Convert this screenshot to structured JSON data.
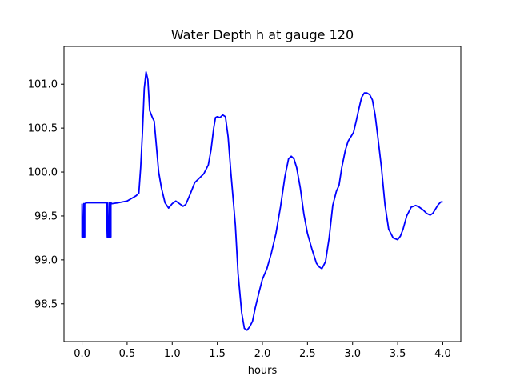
{
  "chart_data": {
    "type": "line",
    "title": "Water Depth h at gauge 120",
    "xlabel": "hours",
    "ylabel": "",
    "xlim": [
      -0.2,
      4.2
    ],
    "ylim": [
      98.07,
      101.43
    ],
    "x_ticks": [
      "0.0",
      "0.5",
      "1.0",
      "1.5",
      "2.0",
      "2.5",
      "3.0",
      "3.5",
      "4.0"
    ],
    "y_ticks": [
      "98.5",
      "99.0",
      "99.5",
      "100.0",
      "100.5",
      "101.0"
    ],
    "grid": false,
    "legend": "none",
    "series": [
      {
        "color": "#0000ff",
        "x": [
          0.0,
          0.0,
          0.01,
          0.02,
          0.02,
          0.03,
          0.03,
          0.05,
          0.1,
          0.2,
          0.27,
          0.28,
          0.28,
          0.29,
          0.3,
          0.3,
          0.31,
          0.32,
          0.32,
          0.33,
          0.4,
          0.5,
          0.55,
          0.6,
          0.63,
          0.65,
          0.67,
          0.69,
          0.71,
          0.73,
          0.75,
          0.78,
          0.8,
          0.82,
          0.85,
          0.88,
          0.92,
          0.96,
          1.0,
          1.04,
          1.08,
          1.12,
          1.15,
          1.2,
          1.25,
          1.3,
          1.35,
          1.4,
          1.43,
          1.46,
          1.48,
          1.5,
          1.53,
          1.56,
          1.59,
          1.62,
          1.65,
          1.7,
          1.73,
          1.77,
          1.8,
          1.83,
          1.86,
          1.89,
          1.92,
          1.96,
          2.0,
          2.05,
          2.1,
          2.15,
          2.2,
          2.25,
          2.29,
          2.32,
          2.35,
          2.38,
          2.42,
          2.46,
          2.5,
          2.55,
          2.6,
          2.63,
          2.66,
          2.7,
          2.74,
          2.78,
          2.82,
          2.85,
          2.88,
          2.92,
          2.95,
          2.98,
          3.01,
          3.04,
          3.07,
          3.1,
          3.13,
          3.16,
          3.19,
          3.22,
          3.25,
          3.28,
          3.32,
          3.36,
          3.4,
          3.45,
          3.5,
          3.53,
          3.56,
          3.6,
          3.65,
          3.7,
          3.74,
          3.78,
          3.82,
          3.86,
          3.89,
          3.92,
          3.95,
          3.98,
          4.0
        ],
        "y": [
          99.64,
          99.26,
          99.26,
          99.64,
          99.26,
          99.26,
          99.64,
          99.65,
          99.65,
          99.65,
          99.65,
          99.26,
          99.65,
          99.26,
          99.26,
          99.65,
          99.26,
          99.26,
          99.65,
          99.64,
          99.65,
          99.67,
          99.7,
          99.73,
          99.76,
          100.05,
          100.45,
          100.95,
          101.14,
          101.05,
          100.7,
          100.62,
          100.58,
          100.35,
          100.0,
          99.82,
          99.65,
          99.59,
          99.64,
          99.67,
          99.64,
          99.61,
          99.63,
          99.75,
          99.88,
          99.93,
          99.98,
          100.08,
          100.25,
          100.5,
          100.62,
          100.63,
          100.62,
          100.65,
          100.63,
          100.4,
          100.0,
          99.4,
          98.85,
          98.4,
          98.22,
          98.2,
          98.24,
          98.3,
          98.45,
          98.62,
          98.78,
          98.9,
          99.08,
          99.3,
          99.6,
          99.95,
          100.15,
          100.18,
          100.15,
          100.05,
          99.82,
          99.52,
          99.3,
          99.12,
          98.96,
          98.92,
          98.9,
          98.98,
          99.25,
          99.62,
          99.78,
          99.85,
          100.05,
          100.25,
          100.35,
          100.4,
          100.45,
          100.58,
          100.72,
          100.85,
          100.9,
          100.9,
          100.88,
          100.82,
          100.65,
          100.4,
          100.05,
          99.62,
          99.35,
          99.25,
          99.23,
          99.27,
          99.35,
          99.5,
          99.6,
          99.62,
          99.6,
          99.57,
          99.53,
          99.51,
          99.53,
          99.58,
          99.63,
          99.66,
          99.66
        ]
      }
    ]
  }
}
